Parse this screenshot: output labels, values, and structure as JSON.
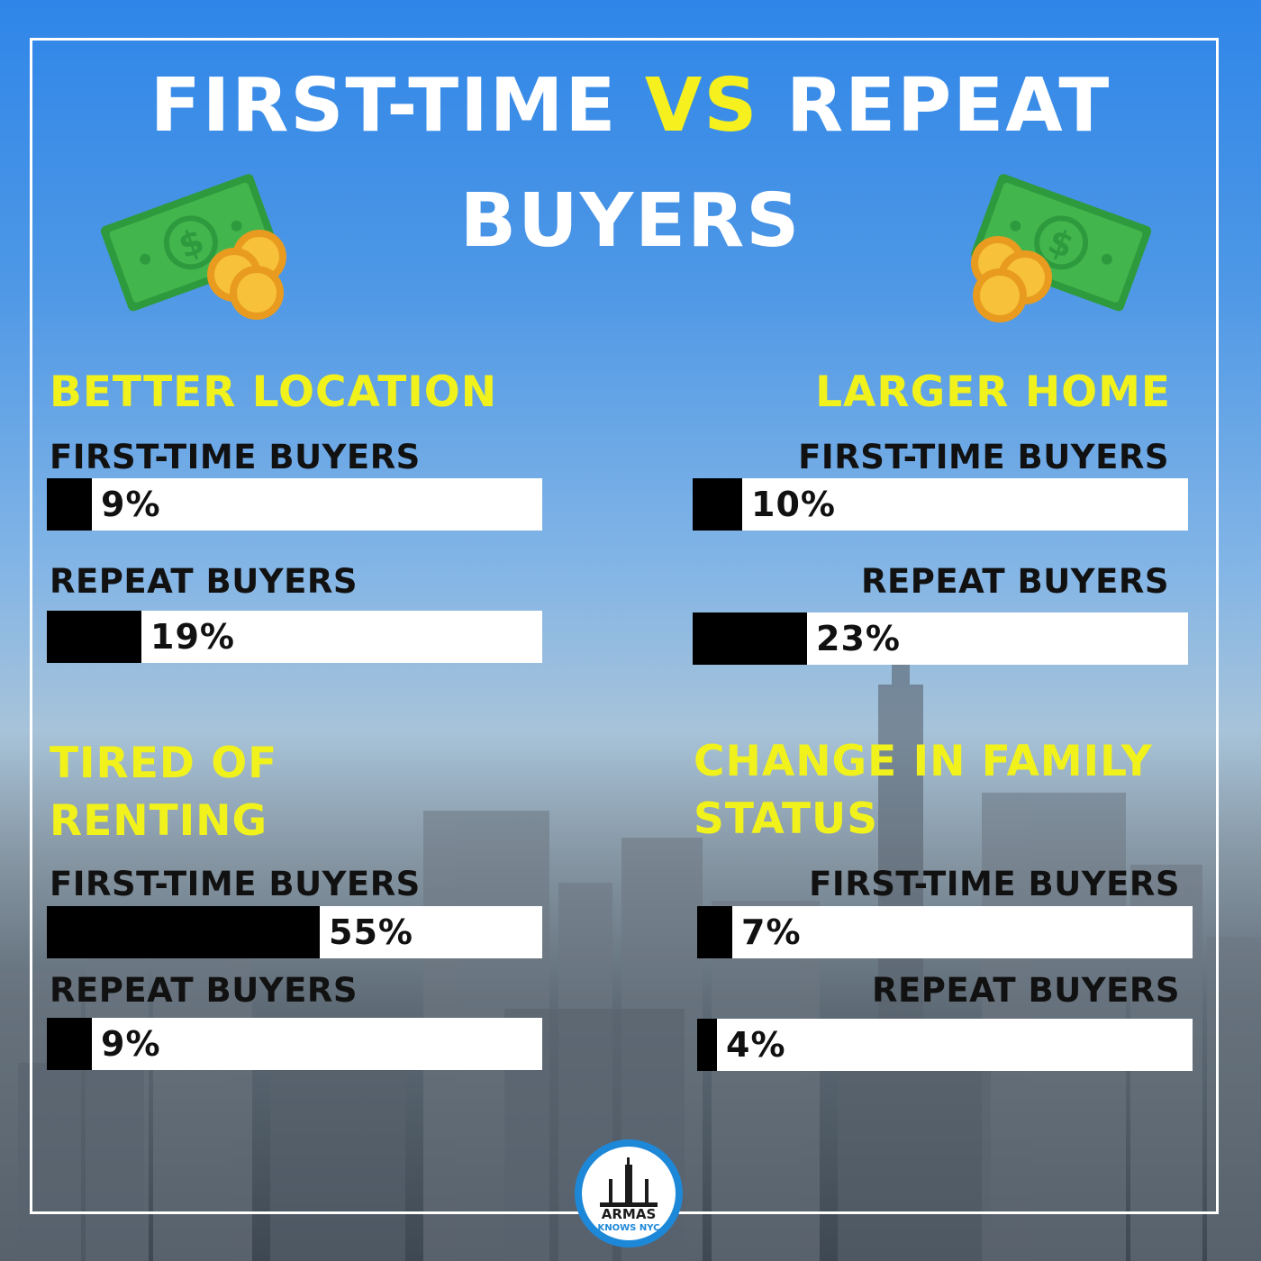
{
  "title": {
    "line1_a": "FIRST-TIME",
    "line1_vs": "VS",
    "line1_b": "REPEAT",
    "line2": "BUYERS"
  },
  "colors": {
    "accent_yellow": "#f1f21c",
    "bar_fill": "#000000",
    "bar_track": "#ffffff",
    "money_green": "#3cb54a",
    "coin_gold": "#f7b731"
  },
  "icons": [
    "money-bills-icon",
    "coins-icon"
  ],
  "logo": {
    "line1": "ARMAS",
    "line2": "KNOWS NYC"
  },
  "chart_data": [
    {
      "type": "bar",
      "title": "BETTER LOCATION",
      "categories": [
        "FIRST-TIME BUYERS",
        "REPEAT BUYERS"
      ],
      "values": [
        9,
        19
      ],
      "value_labels": [
        "9%",
        "19%"
      ],
      "ylim": [
        0,
        100
      ]
    },
    {
      "type": "bar",
      "title": "LARGER HOME",
      "categories": [
        "FIRST-TIME BUYERS",
        "REPEAT BUYERS"
      ],
      "values": [
        10,
        23
      ],
      "value_labels": [
        "10%",
        "23%"
      ],
      "ylim": [
        0,
        100
      ]
    },
    {
      "type": "bar",
      "title": "TIRED OF RENTING",
      "categories": [
        "FIRST-TIME BUYERS",
        "REPEAT BUYERS"
      ],
      "values": [
        55,
        9
      ],
      "value_labels": [
        "55%",
        "9%"
      ],
      "ylim": [
        0,
        100
      ]
    },
    {
      "type": "bar",
      "title": "CHANGE IN FAMILY STATUS",
      "categories": [
        "FIRST-TIME BUYERS",
        "REPEAT BUYERS"
      ],
      "values": [
        7,
        4
      ],
      "value_labels": [
        "7%",
        "4%"
      ],
      "ylim": [
        0,
        100
      ]
    }
  ]
}
